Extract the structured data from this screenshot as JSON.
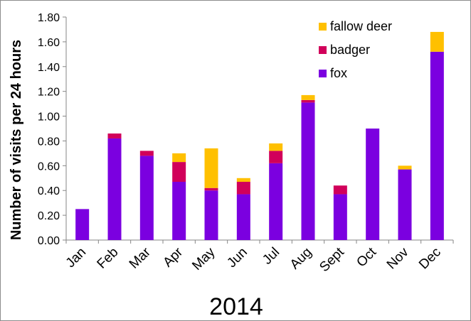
{
  "chart_data": {
    "type": "bar",
    "stacked": true,
    "categories": [
      "Jan",
      "Feb",
      "Mar",
      "Apr",
      "May",
      "Jun",
      "Jul",
      "Aug",
      "Sept",
      "Oct",
      "Nov",
      "Dec"
    ],
    "series": [
      {
        "name": "fox",
        "color": "#7b00e0",
        "values": [
          0.25,
          0.82,
          0.68,
          0.47,
          0.4,
          0.37,
          0.62,
          1.11,
          0.37,
          0.9,
          0.57,
          1.52
        ]
      },
      {
        "name": "badger",
        "color": "#d1005a",
        "values": [
          0.0,
          0.04,
          0.04,
          0.16,
          0.02,
          0.1,
          0.1,
          0.02,
          0.07,
          0.0,
          0.0,
          0.0
        ]
      },
      {
        "name": "fallow deer",
        "color": "#ffc000",
        "values": [
          0.0,
          0.0,
          0.0,
          0.07,
          0.32,
          0.03,
          0.06,
          0.04,
          0.0,
          0.0,
          0.03,
          0.16
        ]
      }
    ],
    "ylabel": "Number of visits per 24 hours",
    "xlabel": "2014",
    "ylim": [
      0,
      1.8
    ],
    "yticks": [
      "0.00",
      "0.20",
      "0.40",
      "0.60",
      "0.80",
      "1.00",
      "1.20",
      "1.40",
      "1.60",
      "1.80"
    ],
    "legend": {
      "placement": "top-right",
      "order": [
        "fallow deer",
        "badger",
        "fox"
      ]
    },
    "grid": false
  }
}
